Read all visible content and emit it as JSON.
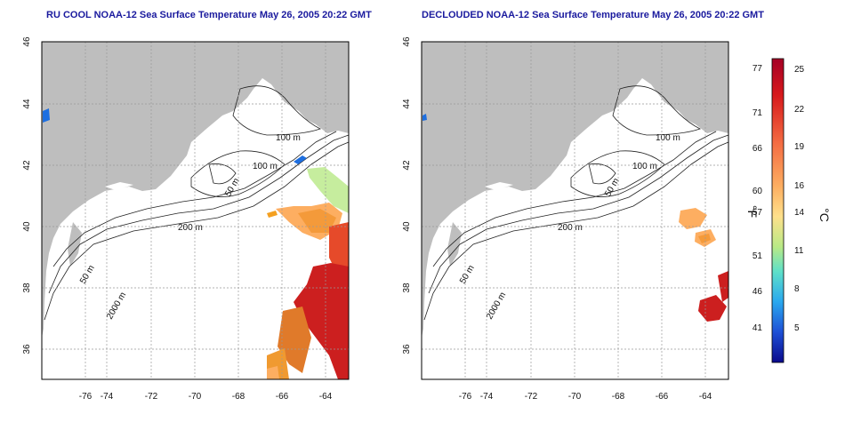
{
  "titles": {
    "left": "RU COOL NOAA-12 Sea Surface Temperature May 26, 2005 20:22 GMT",
    "right": "DECLOUDED NOAA-12 Sea Surface Temperature May 26, 2005 20:22 GMT"
  },
  "map": {
    "x_ticks": [
      "-76",
      "-74",
      "-72",
      "-70",
      "-68",
      "-66",
      "-64"
    ],
    "y_ticks": [
      "36",
      "38",
      "40",
      "42",
      "44",
      "46"
    ],
    "contour_labels": [
      "100 m",
      "100 m",
      "50 m",
      "200 m",
      "50 m",
      "2000 m"
    ],
    "grid": "dotted",
    "land_color": "#bebebe",
    "ocean_color": "#ffffff"
  },
  "colorbar": {
    "f_ticks": [
      "77",
      "71",
      "66",
      "60",
      "57",
      "51",
      "46",
      "41"
    ],
    "c_ticks": [
      "25",
      "22",
      "19",
      "16",
      "14",
      "11",
      "8",
      "5"
    ],
    "f_label": "°F",
    "c_label": "°C",
    "colors": [
      "#a50026",
      "#d73027",
      "#f46d43",
      "#fdae61",
      "#fee08b",
      "#d9ef8b",
      "#6fe0c8",
      "#2ec7ee",
      "#1e6fe0",
      "#1020a8"
    ]
  }
}
